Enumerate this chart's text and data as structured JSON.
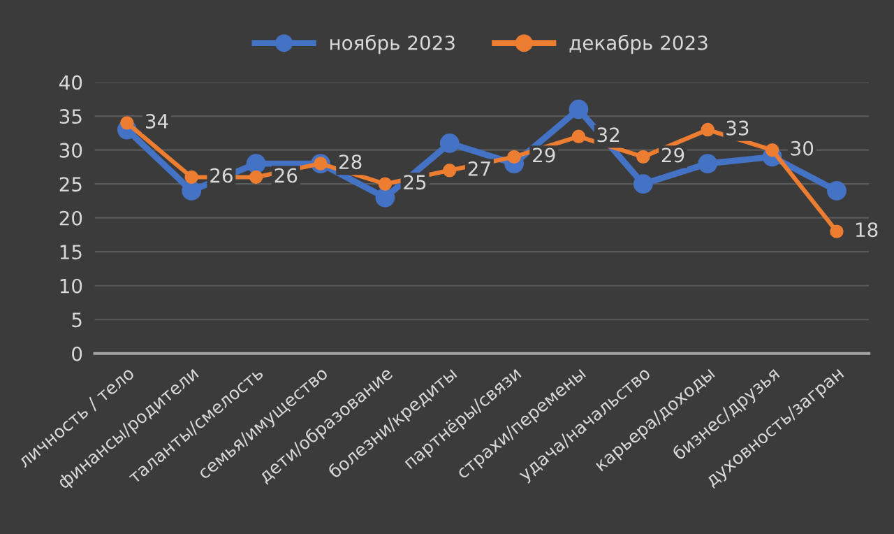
{
  "chart_data": {
    "type": "line",
    "categories": [
      "личность / тело",
      "финансы/родители",
      "таланты/смелость",
      "семья/имущество",
      "дети/образование",
      "болезни/кредиты",
      "партнёры/связи",
      "страхи/перемены",
      "удача/начальство",
      "карьера/доходы",
      "бизнес/друзья",
      "духовность/загран"
    ],
    "series": [
      {
        "name": "ноябрь 2023",
        "color": "#4472c4",
        "values": [
          33,
          24,
          28,
          28,
          23,
          31,
          28,
          36,
          25,
          28,
          29,
          24
        ]
      },
      {
        "name": "декабрь 2023",
        "color": "#ed7d31",
        "values": [
          34,
          26,
          26,
          28,
          25,
          27,
          29,
          32,
          29,
          33,
          30,
          18
        ],
        "value_labels": [
          "34",
          "26",
          "26",
          "28",
          "25",
          "27",
          "29",
          "32",
          "29",
          "33",
          "30",
          "18"
        ]
      }
    ],
    "ylim": [
      0,
      40
    ],
    "yticks": [
      0,
      5,
      10,
      15,
      20,
      25,
      30,
      35,
      40
    ],
    "grid": "y",
    "legend": "top",
    "marker": "circle",
    "line_style": "solid"
  }
}
